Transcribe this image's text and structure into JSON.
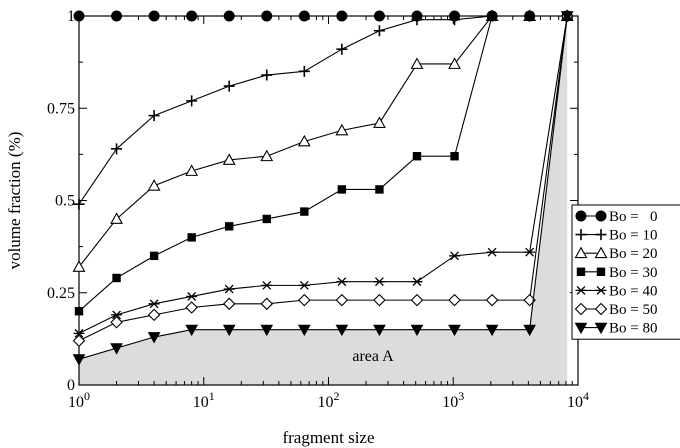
{
  "chart_data": {
    "type": "line",
    "xlabel": "fragment size",
    "ylabel": "volume fraction (%)",
    "xscale": "log",
    "xlim": [
      1,
      10000
    ],
    "ylim": [
      0,
      1
    ],
    "grid": false,
    "legend_placement": "right",
    "x_ticks": [
      {
        "value": 1,
        "base": "10",
        "exp": "0"
      },
      {
        "value": 10,
        "base": "10",
        "exp": "1"
      },
      {
        "value": 100,
        "base": "10",
        "exp": "2"
      },
      {
        "value": 1000,
        "base": "10",
        "exp": "3"
      },
      {
        "value": 10000,
        "base": "10",
        "exp": "4"
      }
    ],
    "y_ticks": [
      {
        "value": 0,
        "label": "0"
      },
      {
        "value": 0.25,
        "label": "0.25"
      },
      {
        "value": 0.5,
        "label": "0.5"
      },
      {
        "value": 0.75,
        "label": "0.75"
      },
      {
        "value": 1,
        "label": "1"
      }
    ],
    "annotation": "area A",
    "series": [
      {
        "name": "Bo =   0",
        "marker": "filled-circle",
        "x": [
          1,
          2,
          4,
          8,
          16,
          32,
          64,
          128,
          256,
          512,
          1024,
          2048,
          4096,
          8192
        ],
        "y": [
          1,
          1,
          1,
          1,
          1,
          1,
          1,
          1,
          1,
          1,
          1,
          1,
          1,
          1
        ]
      },
      {
        "name": "Bo = 10",
        "marker": "plus",
        "x": [
          1,
          2,
          4,
          8,
          16,
          32,
          64,
          128,
          256,
          512,
          1024,
          2048,
          4096,
          8192
        ],
        "y": [
          0.49,
          0.64,
          0.73,
          0.77,
          0.81,
          0.84,
          0.85,
          0.91,
          0.96,
          0.99,
          0.99,
          1,
          1,
          1
        ]
      },
      {
        "name": "Bo = 20",
        "marker": "open-triangle",
        "x": [
          1,
          2,
          4,
          8,
          16,
          32,
          64,
          128,
          256,
          512,
          1024,
          2048,
          4096,
          8192
        ],
        "y": [
          0.32,
          0.45,
          0.54,
          0.58,
          0.61,
          0.62,
          0.66,
          0.69,
          0.71,
          0.87,
          0.87,
          1,
          1,
          1
        ]
      },
      {
        "name": "Bo = 30",
        "marker": "filled-square",
        "x": [
          1,
          2,
          4,
          8,
          16,
          32,
          64,
          128,
          256,
          512,
          1024,
          2048,
          4096,
          8192
        ],
        "y": [
          0.2,
          0.29,
          0.35,
          0.4,
          0.43,
          0.45,
          0.47,
          0.53,
          0.53,
          0.62,
          0.62,
          1,
          1,
          1
        ]
      },
      {
        "name": "Bo = 40",
        "marker": "asterisk",
        "x": [
          1,
          2,
          4,
          8,
          16,
          32,
          64,
          128,
          256,
          512,
          1024,
          2048,
          4096,
          8192
        ],
        "y": [
          0.14,
          0.19,
          0.22,
          0.24,
          0.26,
          0.27,
          0.27,
          0.28,
          0.28,
          0.28,
          0.35,
          0.36,
          0.36,
          1
        ]
      },
      {
        "name": "Bo = 50",
        "marker": "open-diamond",
        "x": [
          1,
          2,
          4,
          8,
          16,
          32,
          64,
          128,
          256,
          512,
          1024,
          2048,
          4096,
          8192
        ],
        "y": [
          0.12,
          0.17,
          0.19,
          0.21,
          0.22,
          0.22,
          0.23,
          0.23,
          0.23,
          0.23,
          0.23,
          0.23,
          0.23,
          1
        ]
      },
      {
        "name": "Bo = 80",
        "marker": "filled-triangle-down",
        "x": [
          1,
          2,
          4,
          8,
          16,
          32,
          64,
          128,
          256,
          512,
          1024,
          2048,
          4096,
          8192
        ],
        "y": [
          0.07,
          0.1,
          0.13,
          0.15,
          0.15,
          0.15,
          0.15,
          0.15,
          0.15,
          0.15,
          0.15,
          0.15,
          0.15,
          1
        ]
      }
    ]
  }
}
